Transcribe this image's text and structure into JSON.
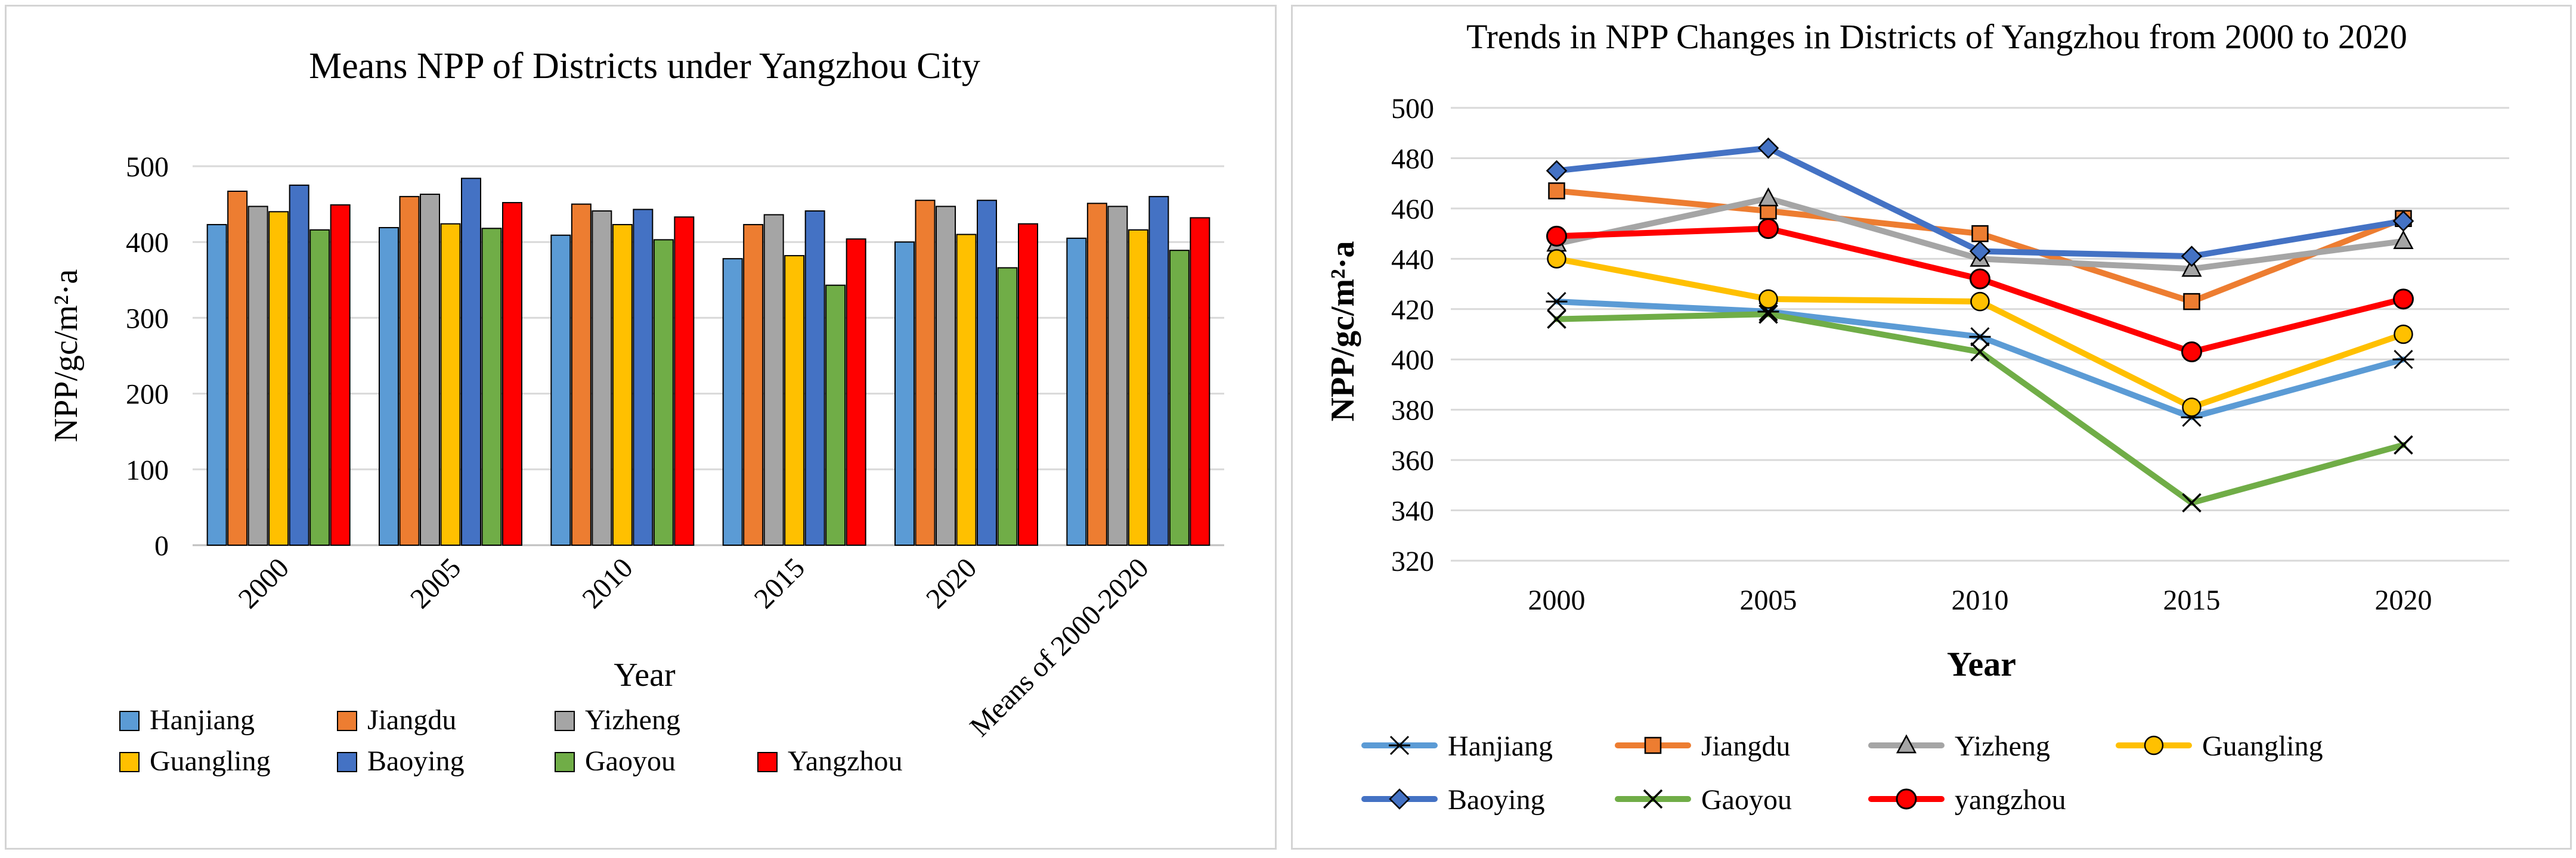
{
  "chart_data": [
    {
      "type": "bar",
      "title": "Means NPP of Districts under Yangzhou City",
      "xlabel": "Year",
      "ylabel": "NPP/gc/m²·a",
      "ylim": [
        0,
        500
      ],
      "yticks": [
        0,
        100,
        200,
        300,
        400,
        500
      ],
      "grid": true,
      "legend_position": "bottom",
      "categories": [
        "2000",
        "2005",
        "2010",
        "2015",
        "2020",
        "Means of 2000-2020"
      ],
      "series": [
        {
          "name": "Hanjiang",
          "color": "#5b9bd5",
          "values": [
            423,
            419,
            409,
            378,
            400,
            405
          ]
        },
        {
          "name": "Jiangdu",
          "color": "#ed7d31",
          "values": [
            467,
            460,
            450,
            423,
            455,
            451
          ]
        },
        {
          "name": "Yizheng",
          "color": "#a5a5a5",
          "values": [
            447,
            463,
            441,
            436,
            447,
            447
          ]
        },
        {
          "name": "Guangling",
          "color": "#ffc000",
          "values": [
            440,
            424,
            423,
            382,
            410,
            416
          ]
        },
        {
          "name": "Baoying",
          "color": "#4472c4",
          "values": [
            475,
            484,
            443,
            441,
            455,
            460
          ]
        },
        {
          "name": "Gaoyou",
          "color": "#70ad47",
          "values": [
            416,
            418,
            403,
            343,
            366,
            389
          ]
        },
        {
          "name": "Yangzhou",
          "color": "#ff0000",
          "values": [
            449,
            452,
            433,
            404,
            424,
            432
          ]
        }
      ]
    },
    {
      "type": "line",
      "title": "Trends in NPP Changes in Districts of Yangzhou from 2000 to 2020",
      "xlabel": "Year",
      "ylabel": "NPP/gc/m²·a",
      "ylim": [
        320,
        500
      ],
      "yticks": [
        320,
        340,
        360,
        380,
        400,
        420,
        440,
        460,
        480,
        500
      ],
      "grid": true,
      "legend_position": "bottom",
      "x": [
        "2000",
        "2005",
        "2010",
        "2015",
        "2020"
      ],
      "series": [
        {
          "name": "Hanjiang",
          "color": "#5b9bd5",
          "marker": "star",
          "values": [
            423,
            419,
            409,
            377,
            400
          ]
        },
        {
          "name": "Jiangdu",
          "color": "#ed7d31",
          "marker": "square",
          "values": [
            467,
            459,
            450,
            423,
            456
          ]
        },
        {
          "name": "Yizheng",
          "color": "#a5a5a5",
          "marker": "triangle",
          "values": [
            446,
            464,
            440,
            436,
            447
          ]
        },
        {
          "name": "Guangling",
          "color": "#ffc000",
          "marker": "circle",
          "values": [
            440,
            424,
            423,
            381,
            410
          ]
        },
        {
          "name": "Baoying",
          "color": "#4472c4",
          "marker": "diamond",
          "values": [
            475,
            484,
            443,
            441,
            455
          ]
        },
        {
          "name": "Gaoyou",
          "color": "#70ad47",
          "marker": "x",
          "values": [
            416,
            418,
            403,
            343,
            366
          ]
        },
        {
          "name": "yangzhou",
          "color": "#ff0000",
          "marker": "dot",
          "values": [
            449,
            452,
            432,
            403,
            424
          ]
        }
      ]
    }
  ]
}
